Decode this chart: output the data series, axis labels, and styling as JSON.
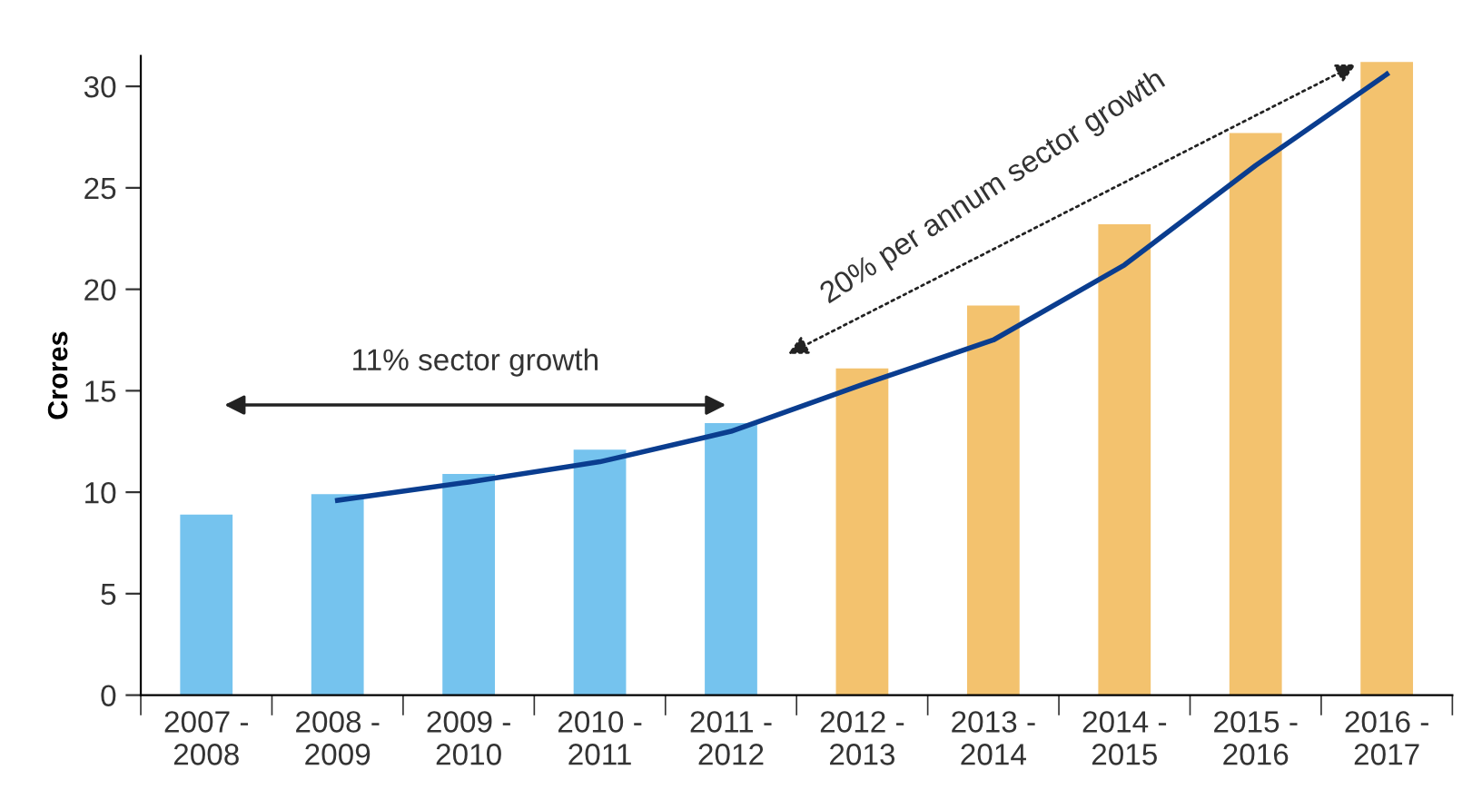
{
  "chart_data": {
    "type": "bar",
    "ylabel": "Crores",
    "categories": [
      "2007 -\n2008",
      "2008 -\n2009",
      "2009 -\n2010",
      "2010 -\n2011",
      "2011 -\n2012",
      "2012 -\n2013",
      "2013 -\n2014",
      "2014 -\n2015",
      "2015 -\n2016",
      "2016 -\n2017"
    ],
    "series": [
      {
        "values": [
          8.9,
          9.9,
          10.9,
          12.1,
          13.4,
          16.1,
          19.2,
          23.2,
          27.7,
          31.2
        ],
        "colors": [
          "#75c3ee",
          "#75c3ee",
          "#75c3ee",
          "#75c3ee",
          "#75c3ee",
          "#f3c26e",
          "#f3c26e",
          "#f3c26e",
          "#f3c26e",
          "#f3c26e"
        ]
      },
      {
        "type": "line",
        "color": "#0a3d8f",
        "values": [
          null,
          9.6,
          10.5,
          11.5,
          13.0,
          15.3,
          17.5,
          21.2,
          26.1,
          30.6
        ]
      }
    ],
    "ylim": [
      0,
      31.5
    ],
    "yticks": [
      0,
      5,
      10,
      15,
      20,
      25,
      30
    ],
    "grid": false,
    "legend": false,
    "annotations": [
      "11% sector growth",
      "20% per annum sector growth"
    ]
  }
}
